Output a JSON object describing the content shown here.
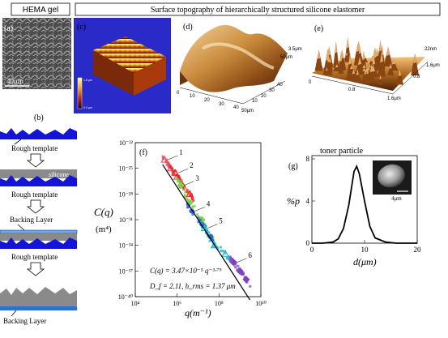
{
  "figure": {
    "panels": {
      "a": {
        "letter": "(a)",
        "title": "HEMA gel",
        "scale_label": "40μm"
      },
      "b": {
        "letter": "(b)",
        "captions": [
          "Rough template",
          "Rough template",
          "Backing Layer",
          "Rough template",
          "Backing Layer"
        ],
        "silicone_label": "silicone"
      },
      "c": {
        "letter": "(c)",
        "colorbar_top": "1.8 µm",
        "colorbar_bottom": "0.0 µm"
      },
      "d": {
        "letter": "(d)",
        "z_label": "3.5μm",
        "x_ticks": [
          "0",
          "10",
          "20",
          "30",
          "40",
          "50μm"
        ],
        "y_ticks": [
          "10",
          "20",
          "30",
          "40",
          "50μm"
        ]
      },
      "e": {
        "letter": "(e)",
        "z_label": "22nm",
        "x_ticks": [
          "0",
          "0.8",
          "1.6μm"
        ],
        "y_ticks": [
          "0.8",
          "1.6μm"
        ]
      },
      "cde_title": "Surface topography of hierarchically structured silicone elastomer",
      "f": {
        "letter": "(f)",
        "ylabel_main": "C(q)",
        "ylabel_unit": "(m⁴)",
        "xlabel": "q(m⁻¹)",
        "equation": "C(q) = 3.47×10⁻⁵ q⁻³·⁷⁹",
        "params": "D_f = 2.11, h_rms = 1.37 μm",
        "curve_labels": [
          "1",
          "2",
          "3",
          "4",
          "5",
          "6"
        ]
      },
      "g": {
        "letter": "(g)",
        "title": "toner particle",
        "ylabel": "%p",
        "xlabel": "d(μm)",
        "inset_scale": "4μm"
      }
    }
  },
  "chart_data": [
    {
      "type": "scatter",
      "panel": "f",
      "title": "",
      "xlabel": "q(m⁻¹)",
      "ylabel": "C(q) (m⁴)",
      "xscale": "log",
      "yscale": "log",
      "xlim": [
        10000,
        10000000000
      ],
      "ylim": [
        1e-40,
        1e-22
      ],
      "x_ticks": [
        "10⁴",
        "10⁶",
        "10⁸",
        "10¹⁰"
      ],
      "y_ticks": [
        "10⁻²²",
        "10⁻²⁵",
        "10⁻²⁸",
        "10⁻³¹",
        "10⁻³⁴",
        "10⁻³⁷",
        "10⁻⁴⁰"
      ],
      "fit": {
        "label": "C(q) = 3.47×10⁻⁵ q⁻³·⁷⁹",
        "coefficient": 3.47e-05,
        "exponent": -3.79
      },
      "series": [
        {
          "name": "1",
          "color": "#e84a5f",
          "marker": "triangle",
          "x": [
            250000,
            500000,
            1000000
          ],
          "y": [
            1e-24,
            1e-25,
            1e-26
          ]
        },
        {
          "name": "2",
          "color": "#e82020",
          "marker": "triangle",
          "x": [
            800000,
            1800000,
            4000000
          ],
          "y": [
            3e-26,
            1e-27,
            1e-28
          ]
        },
        {
          "name": "3",
          "color": "#7fd04a",
          "marker": "diamond",
          "x": [
            1500000,
            4000000,
            15000000,
            40000000
          ],
          "y": [
            1e-27,
            1e-29,
            1e-31,
            1e-33
          ]
        },
        {
          "name": "4",
          "color": "#2060e0",
          "marker": "circle",
          "x": [
            5000000,
            15000000,
            40000000
          ],
          "y": [
            1e-30,
            3e-32,
            1e-33
          ]
        },
        {
          "name": "5",
          "color": "#20b0d0",
          "marker": "triangle",
          "x": [
            20000000,
            60000000,
            200000000
          ],
          "y": [
            1e-32,
            1e-34,
            1e-35
          ]
        },
        {
          "name": "6",
          "color": "#8040c0",
          "marker": "diamond",
          "x": [
            500000000,
            1000000000,
            2000000000
          ],
          "y": [
            1e-36,
            1e-37,
            1e-38
          ]
        }
      ]
    },
    {
      "type": "line",
      "panel": "g",
      "title": "toner particle",
      "xlabel": "d(μm)",
      "ylabel": "%p",
      "xlim": [
        0,
        20
      ],
      "ylim": [
        0,
        8
      ],
      "x_ticks": [
        "0",
        "10",
        "20"
      ],
      "y_ticks": [
        "0",
        "4",
        "8"
      ],
      "series": [
        {
          "x": [
            0,
            2,
            4,
            5,
            6,
            7,
            8,
            8.5,
            9,
            10,
            11,
            12,
            14,
            16,
            20
          ],
          "y": [
            0,
            0,
            0.1,
            0.4,
            1.4,
            3.6,
            6.8,
            7.3,
            6.6,
            4.0,
            1.6,
            0.5,
            0.1,
            0,
            0
          ]
        }
      ]
    }
  ]
}
